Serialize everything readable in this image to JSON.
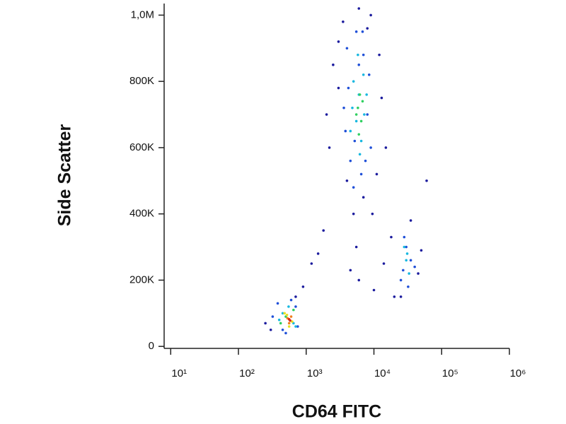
{
  "chart_data": {
    "type": "scatter",
    "x_label": "CD64 FITC",
    "y_label": "Side Scatter",
    "xscale": "log",
    "xlim": [
      8,
      1000000
    ],
    "xticks": [
      {
        "value": 10,
        "label": "10¹"
      },
      {
        "value": 100,
        "label": "10²"
      },
      {
        "value": 1000,
        "label": "10³"
      },
      {
        "value": 10000,
        "label": "10⁴"
      },
      {
        "value": 100000,
        "label": "10⁵"
      },
      {
        "value": 1000000,
        "label": "10⁶"
      }
    ],
    "ylim": [
      -6000,
      1035000
    ],
    "yticks": [
      0,
      {
        "value": 200000,
        "label": "200K"
      },
      {
        "value": 400000,
        "label": "400K"
      },
      {
        "value": 600000,
        "label": "600K"
      },
      {
        "value": 800000,
        "label": "800K"
      },
      {
        "value": 1000000,
        "label": "1,0M"
      }
    ],
    "grid": false,
    "series": [
      {
        "color": "#1c1c9e",
        "x": [
          3500,
          9000,
          2500,
          12000,
          4000,
          15000,
          2000,
          7000,
          11000,
          5000,
          3000,
          8000,
          13000,
          6000,
          2200,
          18000,
          1500,
          900,
          1200,
          4500,
          6000,
          10000,
          20000,
          50000,
          60000,
          1800,
          700,
          300,
          35000,
          25000,
          45000,
          3000,
          9500,
          5500,
          14000,
          250
        ],
        "values": [
          980000,
          1000000,
          850000,
          880000,
          500000,
          600000,
          700000,
          450000,
          520000,
          400000,
          780000,
          960000,
          750000,
          1020000,
          600000,
          330000,
          280000,
          180000,
          250000,
          230000,
          200000,
          170000,
          150000,
          290000,
          500000,
          350000,
          150000,
          50000,
          380000,
          150000,
          220000,
          920000,
          400000,
          300000,
          250000,
          70000
        ]
      },
      {
        "color": "#2050d8",
        "x": [
          4000,
          5500,
          7000,
          8500,
          4500,
          6500,
          3800,
          9000,
          5000,
          6000,
          7500,
          4200,
          8000,
          5200,
          3600,
          6800,
          25000,
          30000,
          35000,
          28000,
          32000,
          40000,
          27000,
          380,
          450,
          600,
          750,
          320,
          700,
          500
        ],
        "values": [
          900000,
          950000,
          880000,
          820000,
          560000,
          520000,
          650000,
          600000,
          480000,
          850000,
          560000,
          780000,
          700000,
          620000,
          720000,
          950000,
          200000,
          300000,
          260000,
          330000,
          180000,
          240000,
          230000,
          130000,
          50000,
          140000,
          60000,
          90000,
          120000,
          40000
        ]
      },
      {
        "color": "#18b8e0",
        "x": [
          5000,
          6000,
          7000,
          5500,
          6500,
          4800,
          7200,
          5800,
          6200,
          4500,
          7800,
          30000,
          28000,
          33000,
          31000,
          450,
          650,
          550,
          400,
          700
        ],
        "values": [
          800000,
          760000,
          820000,
          680000,
          620000,
          720000,
          700000,
          880000,
          580000,
          650000,
          760000,
          260000,
          300000,
          220000,
          280000,
          100000,
          70000,
          120000,
          80000,
          60000
        ]
      },
      {
        "color": "#30d060",
        "x": [
          5800,
          6500,
          6000,
          5500,
          6800,
          6200,
          500,
          650,
          420
        ],
        "values": [
          720000,
          680000,
          640000,
          700000,
          740000,
          760000,
          90000,
          110000,
          70000
        ]
      },
      {
        "color": "#e8e020",
        "x": [
          480,
          620,
          560,
          520
        ],
        "values": [
          100000,
          75000,
          60000,
          95000
        ]
      },
      {
        "color": "#f08020",
        "x": [
          530,
          600,
          560
        ],
        "values": [
          85000,
          90000,
          70000
        ]
      },
      {
        "color": "#e02010",
        "x": [
          560,
          580
        ],
        "values": [
          82000,
          78000
        ]
      }
    ]
  }
}
